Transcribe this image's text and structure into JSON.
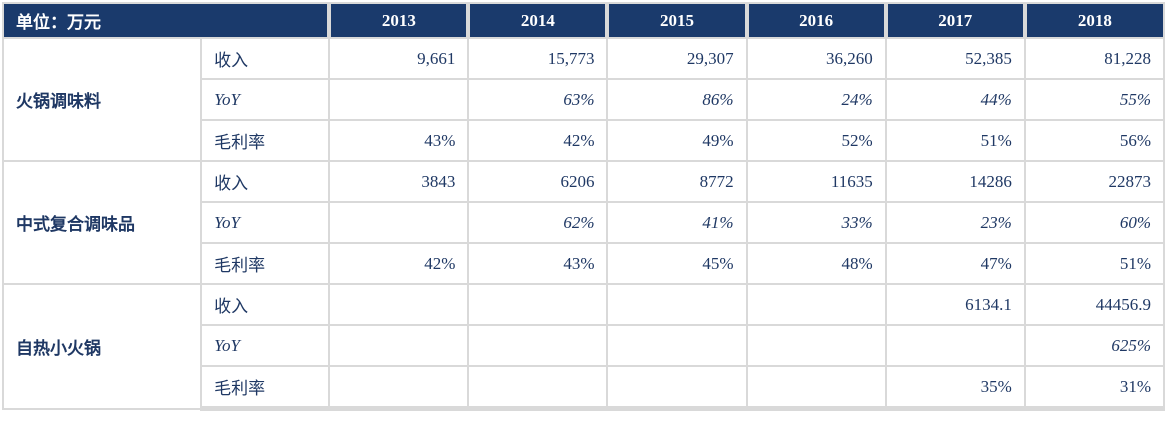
{
  "table": {
    "unit_label": "单位：万元",
    "years": [
      "2013",
      "2014",
      "2015",
      "2016",
      "2017",
      "2018"
    ],
    "groups": [
      {
        "name": "火锅调味料",
        "rows": [
          {
            "metric": "收入",
            "italic": false,
            "values": [
              "9,661",
              "15,773",
              "29,307",
              "36,260",
              "52,385",
              "81,228"
            ]
          },
          {
            "metric": "YoY",
            "italic": true,
            "values": [
              "",
              "63%",
              "86%",
              "24%",
              "44%",
              "55%"
            ]
          },
          {
            "metric": "毛利率",
            "italic": false,
            "values": [
              "43%",
              "42%",
              "49%",
              "52%",
              "51%",
              "56%"
            ]
          }
        ]
      },
      {
        "name": "中式复合调味品",
        "rows": [
          {
            "metric": "收入",
            "italic": false,
            "values": [
              "3843",
              "6206",
              "8772",
              "11635",
              "14286",
              "22873"
            ]
          },
          {
            "metric": "YoY",
            "italic": true,
            "values": [
              "",
              "62%",
              "41%",
              "33%",
              "23%",
              "60%"
            ]
          },
          {
            "metric": "毛利率",
            "italic": false,
            "values": [
              "42%",
              "43%",
              "45%",
              "48%",
              "47%",
              "51%"
            ]
          }
        ]
      },
      {
        "name": "自热小火锅",
        "rows": [
          {
            "metric": "收入",
            "italic": false,
            "values": [
              "",
              "",
              "",
              "",
              "6134.1",
              "44456.9"
            ]
          },
          {
            "metric": "YoY",
            "italic": true,
            "values": [
              "",
              "",
              "",
              "",
              "",
              "625%"
            ]
          },
          {
            "metric": "毛利率",
            "italic": false,
            "values": [
              "",
              "",
              "",
              "",
              "35%",
              "31%"
            ]
          }
        ]
      }
    ],
    "colors": {
      "header_bg": "#1a3a6c",
      "text": "#1f3864",
      "border": "#d9d9d9"
    }
  }
}
